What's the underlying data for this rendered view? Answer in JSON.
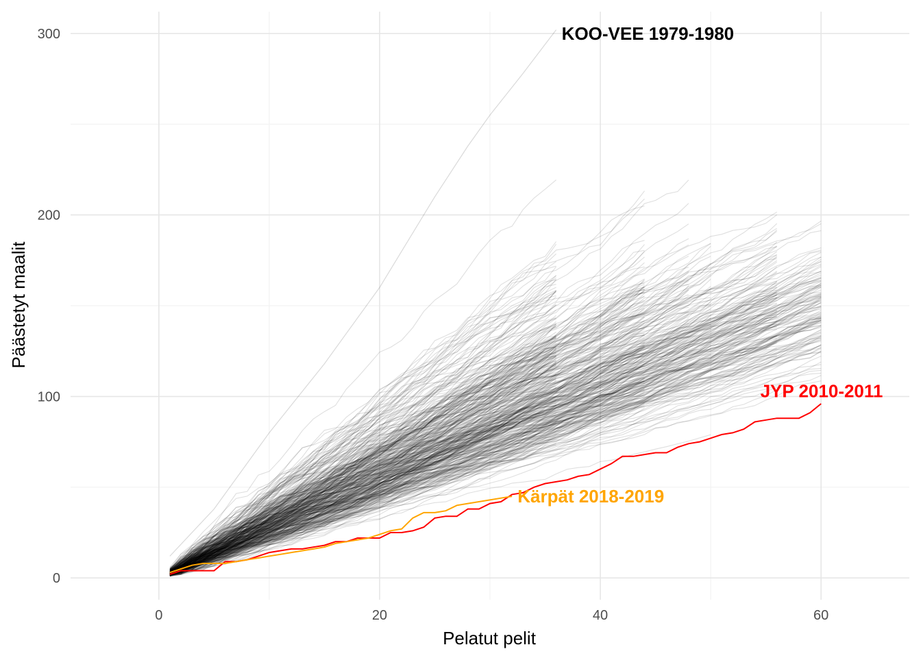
{
  "chart_data": {
    "type": "line",
    "title": "",
    "xlabel": "Pelatut pelit",
    "ylabel": "Päästetyt maalit",
    "xlim": [
      -8,
      68
    ],
    "ylim": [
      -12,
      312
    ],
    "x_ticks": [
      "0",
      "20",
      "40",
      "60"
    ],
    "y_ticks": [
      "0",
      "100",
      "200",
      "300"
    ],
    "grid": true,
    "background_series_color": "#000000",
    "background_series_note": "approx. 400 season trajectories (seasons of 36, 44, 48, 50, 56 and 60 games) drawn in translucent grey",
    "highlighted": [
      {
        "name": "KOO-VEE 1979-1980",
        "color": "#000000",
        "label_x": 36.5,
        "label_y": 300,
        "x": [
          1,
          5,
          10,
          15,
          20,
          25,
          28,
          30,
          33,
          36
        ],
        "y": [
          12,
          38,
          80,
          118,
          160,
          210,
          238,
          255,
          278,
          302
        ]
      },
      {
        "name": "JYP 2010-2011",
        "color": "#ff0000",
        "label_x": 54.5,
        "label_y": 103,
        "x": [
          1,
          2,
          3,
          4,
          5,
          6,
          7,
          8,
          9,
          10,
          11,
          12,
          13,
          14,
          15,
          16,
          17,
          18,
          19,
          20,
          21,
          22,
          23,
          24,
          25,
          26,
          27,
          28,
          29,
          30,
          31,
          32,
          33,
          34,
          35,
          36,
          37,
          38,
          39,
          40,
          41,
          42,
          43,
          44,
          45,
          46,
          47,
          48,
          49,
          50,
          51,
          52,
          53,
          54,
          55,
          56,
          57,
          58,
          59,
          60
        ],
        "y": [
          2,
          4,
          4,
          4,
          4,
          9,
          9,
          10,
          12,
          14,
          15,
          16,
          16,
          17,
          18,
          20,
          20,
          22,
          22,
          22,
          25,
          25,
          26,
          28,
          33,
          34,
          34,
          38,
          38,
          41,
          42,
          46,
          47,
          50,
          52,
          53,
          54,
          56,
          57,
          60,
          63,
          67,
          67,
          68,
          69,
          69,
          72,
          74,
          75,
          77,
          79,
          80,
          82,
          86,
          87,
          88,
          88,
          88,
          91,
          96
        ]
      },
      {
        "name": "Kärpät 2018-2019",
        "color": "#ffa500",
        "label_x": 32.5,
        "label_y": 45,
        "x": [
          1,
          2,
          3,
          4,
          5,
          6,
          7,
          8,
          9,
          10,
          11,
          12,
          13,
          14,
          15,
          16,
          17,
          18,
          19,
          20,
          21,
          22,
          23,
          24,
          25,
          26,
          27,
          28,
          29,
          30,
          31,
          32
        ],
        "y": [
          3,
          5,
          7,
          8,
          8,
          8,
          9,
          10,
          11,
          12,
          13,
          14,
          15,
          16,
          17,
          19,
          20,
          21,
          22,
          24,
          26,
          27,
          33,
          36,
          36,
          37,
          40,
          41,
          42,
          43,
          44,
          45
        ]
      }
    ]
  }
}
